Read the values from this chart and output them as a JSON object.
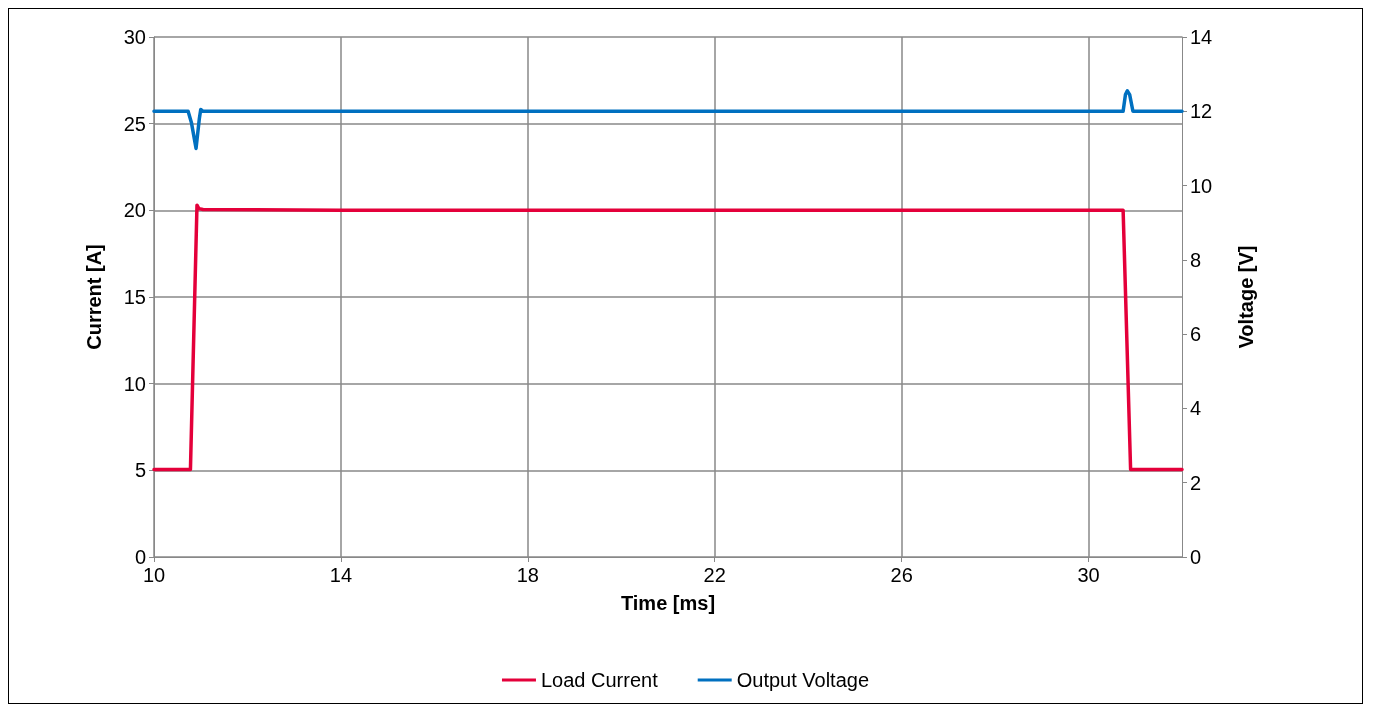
{
  "chart_data": {
    "type": "line",
    "xlabel": "Time [ms]",
    "ylabel": "Current [A]",
    "y2label": "Voltage [V]",
    "xlim": [
      10,
      32
    ],
    "xticks": [
      10,
      14,
      18,
      22,
      26,
      30
    ],
    "ylim": [
      0,
      30
    ],
    "yticks": [
      0,
      5,
      10,
      15,
      20,
      25,
      30
    ],
    "y2lim": [
      0,
      14
    ],
    "y2ticks": [
      0,
      2,
      4,
      6,
      8,
      10,
      12,
      14
    ],
    "grid": true,
    "legend": "bottom",
    "marker": "none",
    "line_style": "solid",
    "series": [
      {
        "name": "Load Current",
        "color": "#e4003a",
        "x": [
          10,
          10.78,
          10.92,
          10.96,
          11.05,
          14,
          18,
          22,
          26,
          30,
          30.74,
          30.9,
          31,
          32
        ],
        "values": [
          5.05,
          5.05,
          20.3,
          20.1,
          20.05,
          20,
          20,
          20,
          20,
          20,
          20,
          5.05,
          5.05,
          5.05
        ]
      },
      {
        "name": "Output Voltage",
        "color": "#0070c0",
        "axis": "y2",
        "x": [
          10,
          10.73,
          10.8,
          10.9,
          10.97,
          11.0,
          11.05,
          14,
          18,
          22,
          26,
          30,
          30.74,
          30.79,
          30.83,
          30.88,
          30.95,
          32
        ],
        "values": [
          12,
          12,
          11.7,
          11.0,
          11.8,
          12.05,
          12,
          12,
          12,
          12,
          12,
          12,
          12,
          12.45,
          12.55,
          12.45,
          12,
          12
        ]
      }
    ]
  }
}
